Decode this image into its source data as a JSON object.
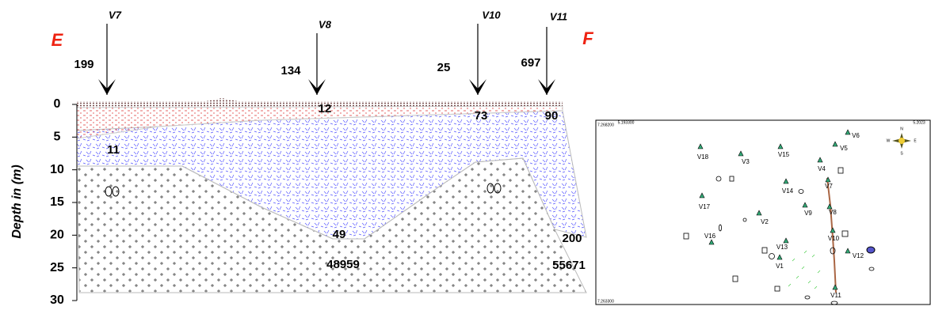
{
  "section": {
    "left_label": "E",
    "right_label": "F",
    "profiles": [
      "V7",
      "V8",
      "V10",
      "V11"
    ],
    "depth_axis": {
      "label": "Depth in (m)",
      "lim": [
        0,
        30
      ],
      "ticks": [
        0,
        5,
        10,
        15,
        20,
        25,
        30
      ]
    },
    "resistivity": [
      199,
      134,
      25,
      697,
      12,
      73,
      90,
      11,
      49,
      200,
      48959,
      55671
    ]
  },
  "map": {
    "corner_labels": [
      "5.193300",
      "5.2023",
      "7.268200",
      "7.263300"
    ],
    "compass": [
      "N",
      "S",
      "E",
      "W"
    ],
    "stations": [
      "V6",
      "V5",
      "V18",
      "V3",
      "V15",
      "V4",
      "V7",
      "V14",
      "V17",
      "V9",
      "V8",
      "V2",
      "V10",
      "V16",
      "V13",
      "V12",
      "V1",
      "V11"
    ]
  }
}
